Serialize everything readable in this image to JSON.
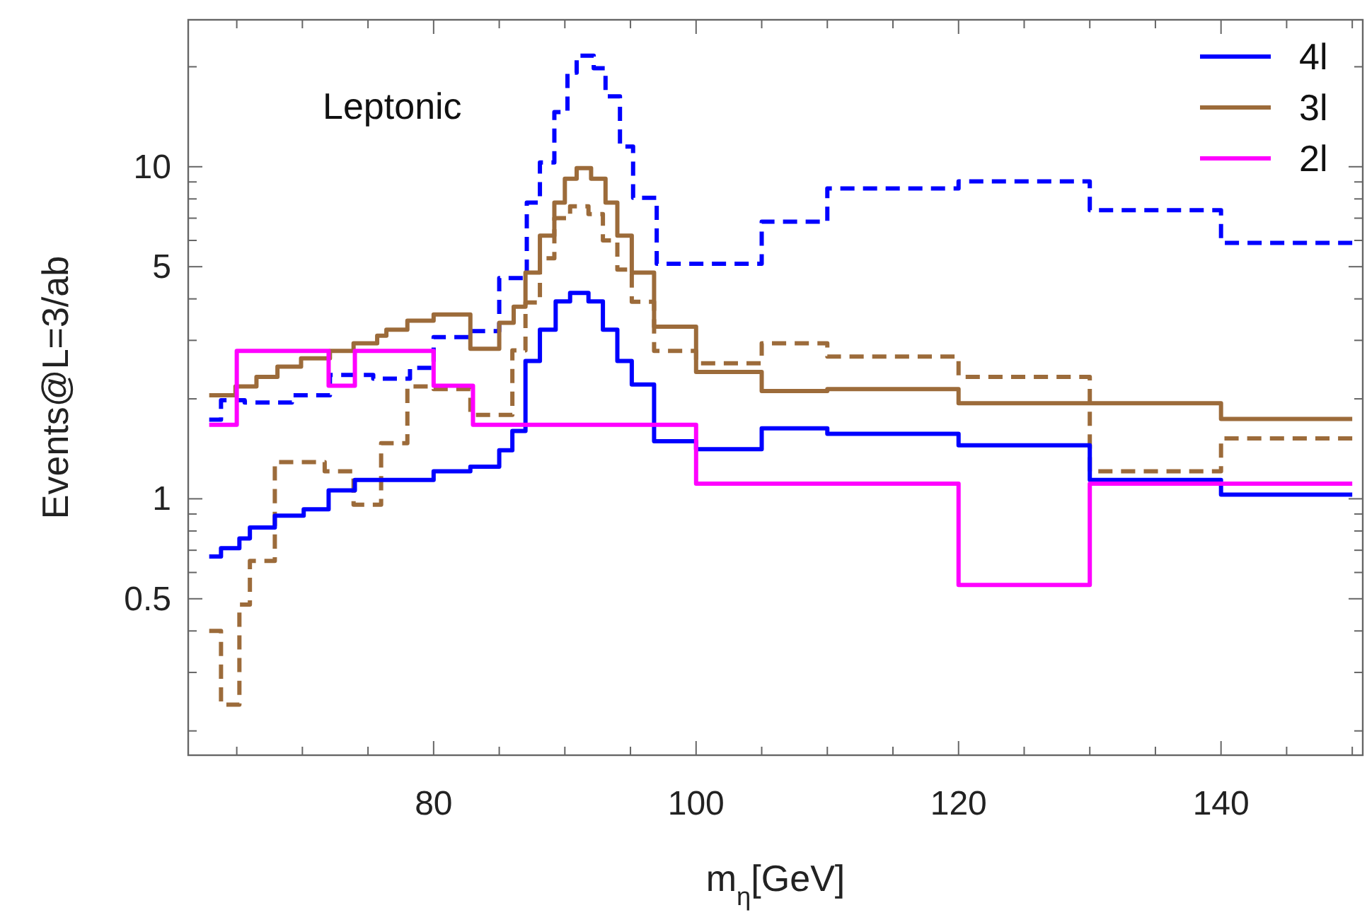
{
  "chart_data": {
    "type": "step",
    "xlabel": "m$_{η}$[GeV]",
    "ylabel": "Events@L=3/ab",
    "annotations": [
      "Leptonic"
    ],
    "log": "y",
    "legend": "top right",
    "grid": false,
    "xlim": [
      61.3,
      150.8
    ],
    "xticks": [
      {
        "value": 65,
        "label": null
      },
      {
        "value": 70,
        "label": null
      },
      {
        "value": 75,
        "label": null
      },
      80,
      {
        "value": 85,
        "label": null
      },
      {
        "value": 90,
        "label": null
      },
      {
        "value": 95,
        "label": null
      },
      100,
      {
        "value": 105,
        "label": null
      },
      {
        "value": 110,
        "label": null
      },
      {
        "value": 115,
        "label": null
      },
      120,
      {
        "value": 125,
        "label": null
      },
      {
        "value": 130,
        "label": null
      },
      {
        "value": 135,
        "label": null
      },
      140,
      {
        "value": 145,
        "label": null
      },
      {
        "value": 150,
        "label": null
      }
    ],
    "ylim": [
      0.169,
      27.7
    ],
    "yticks": [
      {
        "value": 0.2,
        "label": null
      },
      {
        "value": 0.3,
        "label": null
      },
      {
        "value": 0.4,
        "label": null
      },
      0.5,
      {
        "value": 0.6,
        "label": null
      },
      {
        "value": 0.7,
        "label": null
      },
      {
        "value": 0.8,
        "label": null
      },
      {
        "value": 0.9,
        "label": null
      },
      1,
      {
        "value": 2,
        "label": null
      },
      {
        "value": 3,
        "label": null
      },
      {
        "value": 4,
        "label": null
      },
      5,
      {
        "value": 6,
        "label": null
      },
      {
        "value": 7,
        "label": null
      },
      {
        "value": 8,
        "label": null
      },
      {
        "value": 9,
        "label": null
      },
      10,
      {
        "value": 20,
        "label": null
      }
    ],
    "series": [
      {
        "color": "#0000ff",
        "line_style": "dashed",
        "x": [
          62.9,
          63.8,
          65.6,
          69.2,
          72.1,
          75.4,
          78.2,
          80,
          82.8,
          85,
          87.1,
          88.1,
          89.2,
          90.2,
          90.9,
          92.2,
          93.1,
          94.2,
          95.2,
          97,
          105,
          110,
          120,
          130,
          140,
          150
        ],
        "values": [
          1.73,
          1.98,
          1.95,
          2.05,
          2.36,
          2.3,
          2.48,
          3.07,
          3.2,
          4.62,
          7.8,
          10.3,
          14.6,
          19.2,
          21.6,
          19.8,
          16.3,
          11.5,
          8.06,
          5.1,
          6.83,
          8.6,
          9.03,
          7.4,
          5.9,
          5.9
        ]
      },
      {
        "color": "#9c6b3a",
        "line_style": "dashed",
        "x": [
          62.9,
          63.8,
          65.2,
          66,
          67.9,
          71.7,
          73.9,
          76,
          78,
          80,
          82.8,
          86,
          87,
          88.1,
          89.2,
          90.4,
          91.8,
          92.9,
          94,
          95.1,
          96.8,
          100,
          105,
          110,
          120,
          130,
          140,
          150
        ],
        "values": [
          0.4,
          0.24,
          0.48,
          0.65,
          1.29,
          1.21,
          0.96,
          1.47,
          2.18,
          2.14,
          1.79,
          2.8,
          3.9,
          5.3,
          7.0,
          7.6,
          7.2,
          6.0,
          4.9,
          3.92,
          2.79,
          2.56,
          2.94,
          2.68,
          2.33,
          1.21,
          1.52,
          1.52
        ]
      },
      {
        "name": "4l",
        "color": "#0000ff",
        "line_style": "solid",
        "x": [
          62.9,
          63.8,
          65.2,
          66,
          67.9,
          70.1,
          72,
          74,
          80,
          82.8,
          85,
          86,
          87,
          88.1,
          89.3,
          90.4,
          91.8,
          92.9,
          94,
          95.1,
          96.8,
          100,
          105,
          110,
          120,
          130,
          140,
          150
        ],
        "values": [
          0.67,
          0.71,
          0.76,
          0.82,
          0.89,
          0.93,
          1.06,
          1.14,
          1.21,
          1.25,
          1.4,
          1.6,
          2.6,
          3.23,
          3.93,
          4.17,
          3.93,
          3.23,
          2.6,
          2.21,
          1.49,
          1.41,
          1.63,
          1.57,
          1.45,
          1.14,
          1.03,
          1.03
        ]
      },
      {
        "name": "3l",
        "color": "#9c6b3a",
        "line_style": "solid",
        "x": [
          62.9,
          64.9,
          66.5,
          68.1,
          69.9,
          72.1,
          73.9,
          75.7,
          76.4,
          78,
          80,
          82.8,
          85,
          86.1,
          87,
          88.1,
          89.2,
          90,
          90.9,
          92,
          93.1,
          94,
          95.1,
          96.8,
          100,
          105,
          110,
          120,
          140,
          150
        ],
        "values": [
          2.05,
          2.18,
          2.33,
          2.5,
          2.65,
          2.79,
          2.94,
          3.1,
          3.23,
          3.44,
          3.59,
          2.83,
          3.39,
          3.79,
          4.8,
          6.2,
          7.8,
          9.2,
          9.9,
          9.2,
          7.8,
          6.2,
          4.8,
          3.3,
          2.41,
          2.11,
          2.14,
          1.94,
          1.74,
          1.74
        ]
      },
      {
        "name": "2l",
        "color": "#ff00ff",
        "line_style": "solid",
        "x": [
          62.9,
          65,
          72,
          74,
          80,
          83,
          100,
          120,
          130,
          150
        ],
        "values": [
          1.67,
          2.79,
          2.19,
          2.79,
          2.19,
          1.67,
          1.11,
          0.55,
          1.11,
          1.11
        ]
      }
    ]
  }
}
